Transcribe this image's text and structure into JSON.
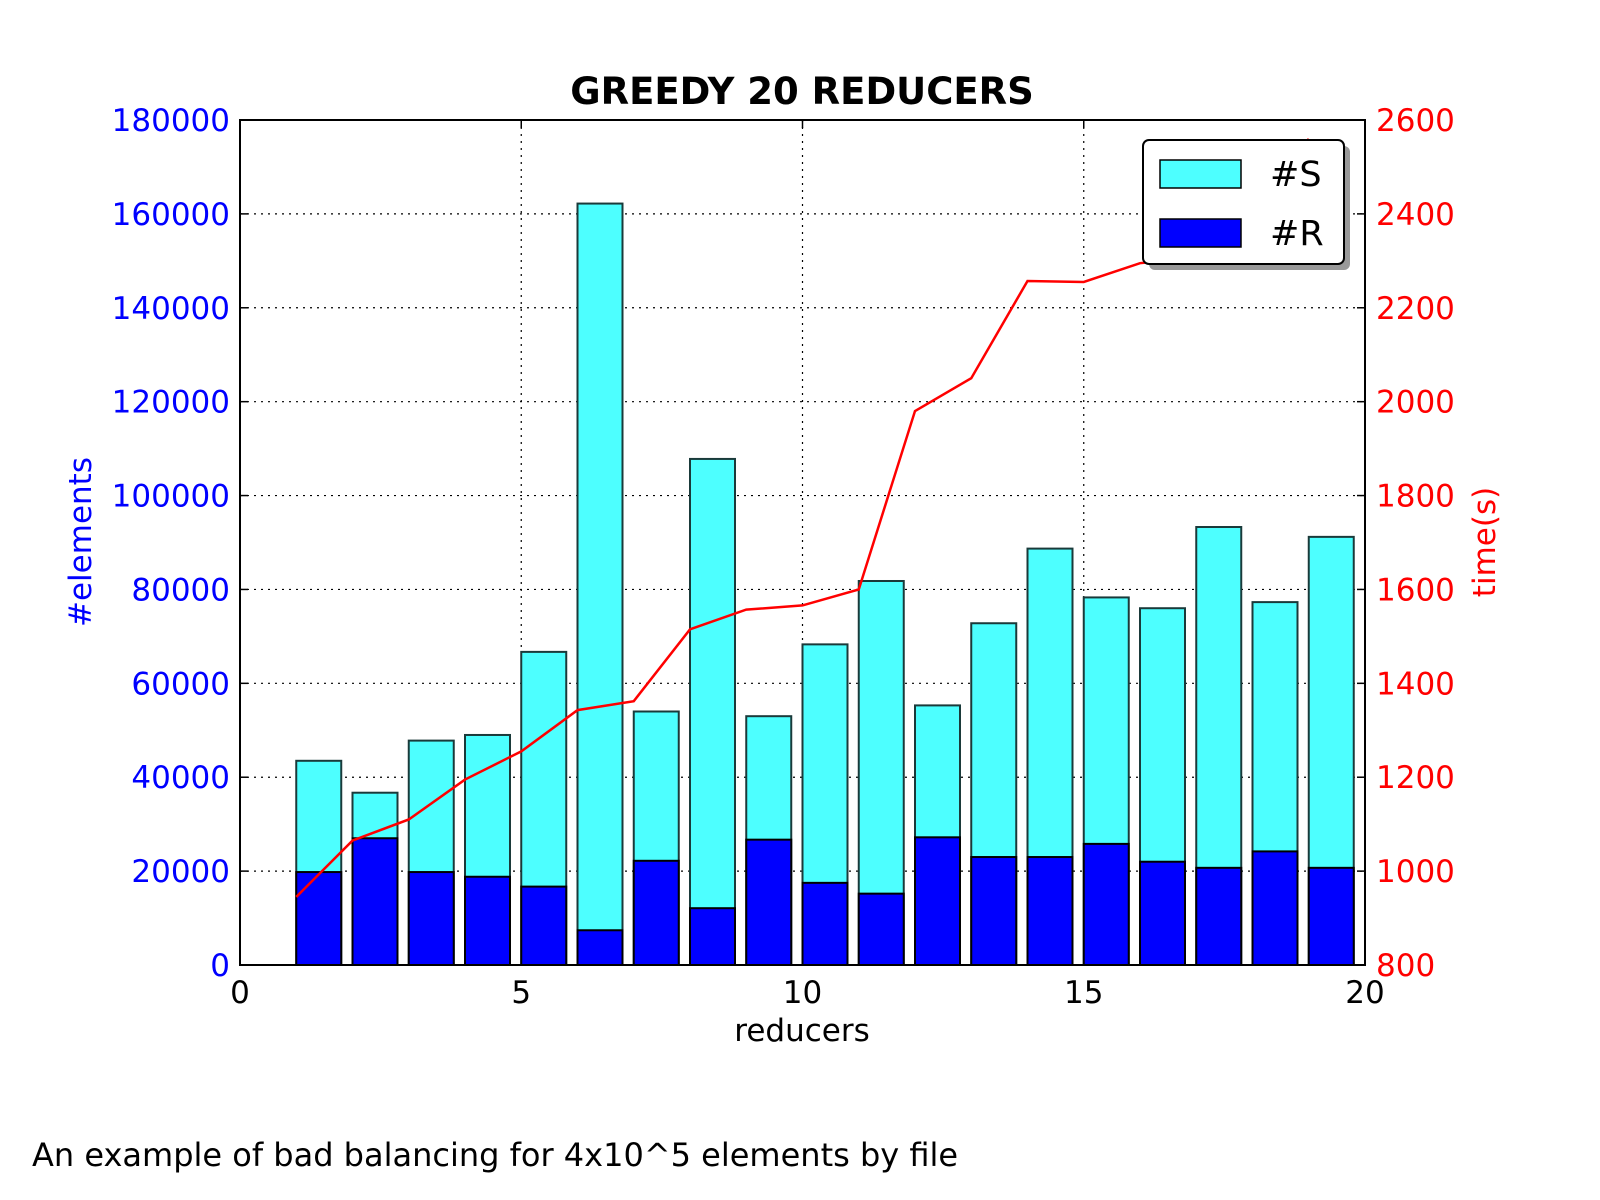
{
  "chart_data": {
    "type": "bar",
    "title": "GREEDY 20 REDUCERS",
    "xlabel": "reducers",
    "ylabel": "#elements",
    "y2label": "time(s)",
    "xlim": [
      0,
      20
    ],
    "ylim": [
      0,
      180000
    ],
    "y2lim": [
      800,
      2600
    ],
    "xticks": [
      "0",
      "5",
      "10",
      "15",
      "20"
    ],
    "yticks": [
      "0",
      "20000",
      "40000",
      "60000",
      "80000",
      "100000",
      "120000",
      "140000",
      "160000",
      "180000"
    ],
    "y2ticks": [
      "800",
      "1000",
      "1200",
      "1400",
      "1600",
      "1800",
      "2000",
      "2200",
      "2400",
      "2600"
    ],
    "grid": true,
    "legend_position": "top-right",
    "categories": [
      1,
      2,
      3,
      4,
      5,
      6,
      7,
      8,
      9,
      10,
      11,
      12,
      13,
      14,
      15,
      16,
      17,
      18,
      19
    ],
    "series": [
      {
        "name": "#S",
        "kind": "bar",
        "color": "#4dffff",
        "values": [
          43500,
          36700,
          47800,
          49000,
          66700,
          162200,
          54000,
          107800,
          53000,
          68300,
          81800,
          55300,
          72800,
          88700,
          78300,
          76000,
          93300,
          77300,
          91200
        ]
      },
      {
        "name": "#R",
        "kind": "bar",
        "color": "#0000ff",
        "values": [
          19800,
          27000,
          19800,
          18800,
          16700,
          7400,
          22200,
          12100,
          26700,
          17500,
          15200,
          27200,
          23000,
          23000,
          25800,
          22000,
          20700,
          24200,
          20700
        ]
      },
      {
        "name": "",
        "kind": "line",
        "axis": "right",
        "color": "#ff0000",
        "x": [
          1,
          2,
          3,
          4,
          5,
          6,
          7,
          8,
          9,
          10,
          11,
          12,
          13,
          14,
          15,
          16,
          17,
          18,
          19
        ],
        "values": [
          945,
          1065,
          1110,
          1195,
          1255,
          1343,
          1362,
          1515,
          1557,
          1566,
          1600,
          1980,
          2050,
          2257,
          2255,
          2295,
          2308,
          2365,
          2560
        ]
      }
    ]
  },
  "caption": "An example of bad balancing for 4x10^5 elements by file"
}
